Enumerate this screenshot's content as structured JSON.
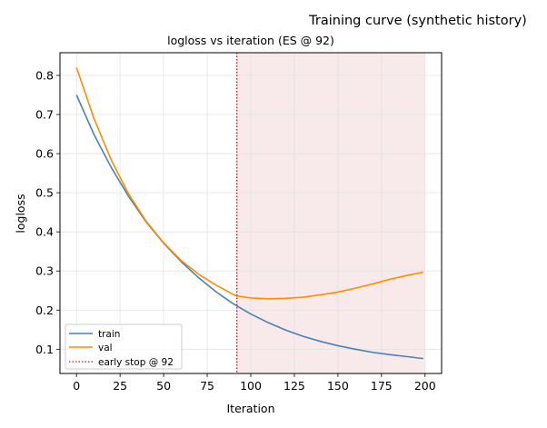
{
  "figure": {
    "suptitle": "Training curve (synthetic history)"
  },
  "chart_data": {
    "type": "line",
    "title": "logloss vs iteration (ES @ 92)",
    "xlabel": "Iteration",
    "ylabel": "logloss",
    "xlim": [
      -9.5,
      209.5
    ],
    "ylim": [
      0.038,
      0.858
    ],
    "xticks": [
      0,
      25,
      50,
      75,
      100,
      125,
      150,
      175,
      200
    ],
    "yticks": [
      0.1,
      0.2,
      0.3,
      0.4,
      0.5,
      0.6,
      0.7,
      0.8
    ],
    "grid": true,
    "legend_position": "lower-left",
    "series": [
      {
        "name": "train",
        "color": "#4682b4",
        "x": [
          0,
          10,
          20,
          30,
          40,
          50,
          60,
          70,
          80,
          90,
          100,
          110,
          120,
          130,
          140,
          150,
          160,
          170,
          180,
          190,
          199
        ],
        "y": [
          0.75,
          0.649,
          0.564,
          0.49,
          0.425,
          0.371,
          0.324,
          0.283,
          0.247,
          0.216,
          0.19,
          0.168,
          0.149,
          0.133,
          0.12,
          0.109,
          0.1,
          0.092,
          0.086,
          0.081,
          0.076
        ]
      },
      {
        "name": "val",
        "color": "#ff8c00",
        "x": [
          0,
          10,
          20,
          30,
          40,
          50,
          60,
          70,
          80,
          90,
          92,
          100,
          110,
          120,
          130,
          140,
          150,
          160,
          170,
          180,
          190,
          199
        ],
        "y": [
          0.82,
          0.69,
          0.583,
          0.496,
          0.427,
          0.372,
          0.327,
          0.292,
          0.264,
          0.24,
          0.236,
          0.231,
          0.229,
          0.23,
          0.233,
          0.239,
          0.246,
          0.256,
          0.267,
          0.279,
          0.289,
          0.297
        ]
      }
    ],
    "early_stop": {
      "label": "early stop @ 92",
      "iteration": 92,
      "color": "#b22222",
      "shade_to": 200,
      "shade_color": "#f2d6d6"
    }
  }
}
